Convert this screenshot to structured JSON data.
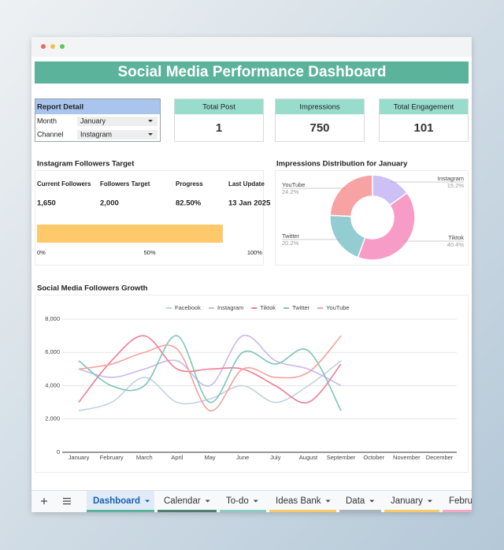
{
  "header": {
    "title": "Social Media Performance Dashboard"
  },
  "report_detail": {
    "title": "Report Detail",
    "rows": [
      {
        "label": "Month",
        "value": "January"
      },
      {
        "label": "Channel",
        "value": "Instagram"
      }
    ]
  },
  "cards": [
    {
      "title": "Total Post",
      "value": 1
    },
    {
      "title": "Impressions",
      "value": 750
    },
    {
      "title": "Total Engagement",
      "value": 101
    }
  ],
  "followers_target": {
    "title": "Instagram Followers Target",
    "columns": [
      "Current Followers",
      "Followers Target",
      "Progress",
      "Last Update"
    ],
    "values": [
      "1,650",
      "2,000",
      "82.50%",
      "13 Jan 2025"
    ],
    "progress": 82.5,
    "color": "#fdc96a",
    "xlim": [
      0,
      100
    ],
    "xticks": [
      {
        "value": 0,
        "label": "0%"
      },
      {
        "value": 50,
        "label": "50%"
      },
      {
        "value": 100,
        "label": "100%"
      }
    ]
  },
  "chart_data": [
    {
      "type": "pie",
      "donut": true,
      "title": "Impressions Distribution for January",
      "categories": [
        "Instagram",
        "Tiktok",
        "Twitter",
        "YouTube"
      ],
      "values": [
        15.2,
        40.4,
        20.2,
        24.2
      ],
      "value_labels": [
        "15.2%",
        "40.4%",
        "20.2%",
        "24.2%"
      ],
      "colors": [
        "#cdc0f6",
        "#f79cc6",
        "#93ccd1",
        "#f7a3a3"
      ]
    },
    {
      "type": "line",
      "smooth": true,
      "title": "Social Media Followers Growth",
      "categories": [
        "January",
        "February",
        "March",
        "April",
        "May",
        "June",
        "July",
        "August",
        "September",
        "October",
        "November",
        "December"
      ],
      "series": [
        {
          "name": "Facebook",
          "color": "#c3d1de",
          "values": [
            2500,
            3000,
            4500,
            3000,
            3200,
            4000,
            3000,
            4000,
            5500,
            null,
            null,
            null
          ]
        },
        {
          "name": "Instagram",
          "color": "#c9b7f1",
          "values": [
            5000,
            4500,
            5000,
            5500,
            4000,
            7000,
            5500,
            5000,
            4000,
            null,
            null,
            null
          ]
        },
        {
          "name": "Tiktok",
          "color": "#ef7b93",
          "values": [
            3000,
            5500,
            7000,
            5000,
            5000,
            5000,
            4000,
            3000,
            5300,
            null,
            null,
            null
          ]
        },
        {
          "name": "Twitter",
          "color": "#7cc5b6",
          "values": [
            5500,
            4000,
            4000,
            7000,
            3000,
            6000,
            5300,
            6100,
            2500,
            null,
            null,
            null
          ]
        },
        {
          "name": "YouTube",
          "color": "#f4a29b",
          "values": [
            5000,
            5300,
            6000,
            6200,
            2500,
            5000,
            4500,
            4800,
            7000,
            null,
            null,
            null
          ]
        }
      ],
      "ylim": [
        0,
        8000
      ],
      "yticks": [
        0,
        {
          "value": 2000,
          "label": "2,000"
        },
        {
          "value": 4000,
          "label": "4,000"
        },
        {
          "value": 6000,
          "label": "6,000"
        },
        {
          "value": 8000,
          "label": "8,000"
        }
      ],
      "grid": true,
      "legend": "top"
    }
  ],
  "tabs": [
    {
      "name": "Dashboard",
      "color": "#5bb39b",
      "active": true
    },
    {
      "name": "Calendar",
      "color": "#4f7f6f"
    },
    {
      "name": "To-do",
      "color": "#8fc9c4"
    },
    {
      "name": "Ideas Bank",
      "color": "#f6c96a"
    },
    {
      "name": "Data",
      "color": "#a9b3b9"
    },
    {
      "name": "January",
      "color": "#f6c96a"
    },
    {
      "name": "Febru",
      "color": "#f4a8c8"
    }
  ]
}
